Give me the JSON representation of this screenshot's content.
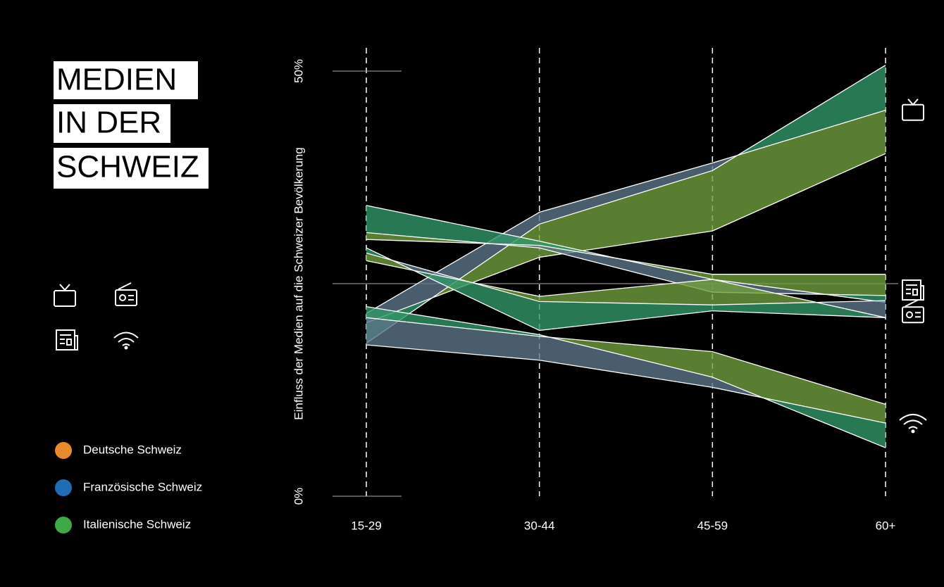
{
  "chart_data": {
    "type": "ribbon",
    "title": [
      "MEDIEN",
      "IN DER",
      "SCHWEIZ"
    ],
    "y_label": "Einfluss der Medien auf die Schweizer Bevölkerung",
    "categories": [
      "15-29",
      "30-44",
      "45-59",
      "60+"
    ],
    "ylim": [
      0,
      50
    ],
    "yticks": [
      {
        "value": 0,
        "label": "0%"
      },
      {
        "value": 50,
        "label": "50%"
      }
    ],
    "series": [
      {
        "name": "Deutsche Schweiz",
        "color": "#e8892a"
      },
      {
        "name": "Französische Schweiz",
        "color": "#1f6db5"
      },
      {
        "name": "Italienische Schweiz",
        "color": "#3daa47"
      }
    ],
    "media": [
      {
        "icon": "tv",
        "values": [
          [
            20.4,
            28.1,
            31.2,
            40.3
          ],
          [
            21.5,
            33.4,
            39.2,
            45.4
          ],
          [
            18.0,
            32.0,
            38.3,
            50.7
          ]
        ]
      },
      {
        "icon": "newspaper",
        "values": [
          [
            30.2,
            29.5,
            26.1,
            26.1
          ],
          [
            31.0,
            29.2,
            24.0,
            23.6
          ],
          [
            34.2,
            30.0,
            25.5,
            22.8
          ]
        ]
      },
      {
        "icon": "radio",
        "values": [
          [
            27.7,
            23.5,
            25.5,
            21.0
          ],
          [
            28.6,
            22.9,
            22.5,
            23.0
          ],
          [
            29.2,
            19.5,
            21.8,
            21.0
          ]
        ]
      },
      {
        "icon": "wifi",
        "values": [
          [
            21.0,
            18.8,
            17.0,
            10.8
          ],
          [
            17.8,
            16.0,
            12.8,
            8.6
          ],
          [
            22.3,
            19.0,
            14.0,
            5.7
          ]
        ]
      }
    ]
  }
}
